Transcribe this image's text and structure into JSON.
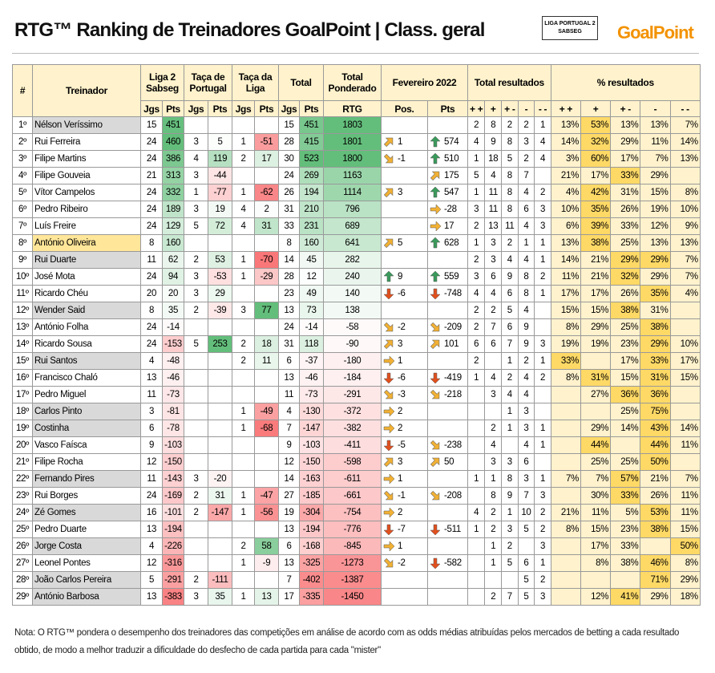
{
  "title": "RTG™ Ranking de Treinadores GoalPoint | Class. geral",
  "logos": {
    "liga": "LIGA PORTUGAL 2",
    "sponsor": "SABSEG",
    "goalpoint": "GoalPoint"
  },
  "header": {
    "rank": "#",
    "name": "Treinador",
    "liga": "Liga 2 Sabseg",
    "taca_portugal": "Taça de Portugal",
    "taca_liga": "Taça da Liga",
    "total": "Total",
    "rtg_top": "Total Ponderado",
    "rtg": "RTG",
    "month": "Fevereiro 2022",
    "pos": "Pos.",
    "pts": "Pts",
    "jgs": "Jgs",
    "results": "Total resultados",
    "pct": "% resultados",
    "result_cols": [
      "+ +",
      "+",
      "+ -",
      "-",
      "- -"
    ],
    "pct_cols": [
      "+ +",
      "+",
      "+ -",
      "-",
      "- -"
    ]
  },
  "rows": [
    {
      "rank": "1º",
      "name": "Nélson Veríssimo",
      "name_bg": "#d9d9d9",
      "liga": [
        15,
        451
      ],
      "taca_portugal": [
        null,
        null
      ],
      "taca_liga": [
        null,
        null
      ],
      "total": [
        15,
        451
      ],
      "rtg": 1803,
      "pos": {
        "value": null,
        "arrow": null
      },
      "pts": {
        "value": null,
        "arrow": null
      },
      "results": [
        2,
        8,
        2,
        2,
        1
      ],
      "pct": [
        "13%",
        "53%",
        "13%",
        "13%",
        "7%"
      ]
    },
    {
      "rank": "2º",
      "name": "Rui Ferreira",
      "name_bg": null,
      "liga": [
        24,
        460
      ],
      "taca_portugal": [
        3,
        5
      ],
      "taca_liga": [
        1,
        -51
      ],
      "total": [
        28,
        415
      ],
      "rtg": 1801,
      "pos": {
        "value": 1,
        "arrow": "ne"
      },
      "pts": {
        "value": 574,
        "arrow": "up"
      },
      "results": [
        4,
        9,
        8,
        3,
        4
      ],
      "pct": [
        "14%",
        "32%",
        "29%",
        "11%",
        "14%"
      ]
    },
    {
      "rank": "3º",
      "name": "Filipe Martins",
      "name_bg": null,
      "liga": [
        24,
        386
      ],
      "taca_portugal": [
        4,
        119
      ],
      "taca_liga": [
        2,
        17
      ],
      "total": [
        30,
        523
      ],
      "rtg": 1800,
      "pos": {
        "value": -1,
        "arrow": "se"
      },
      "pts": {
        "value": 510,
        "arrow": "up"
      },
      "results": [
        1,
        18,
        5,
        2,
        4
      ],
      "pct": [
        "3%",
        "60%",
        "17%",
        "7%",
        "13%"
      ]
    },
    {
      "rank": "4º",
      "name": "Filipe Gouveia",
      "name_bg": null,
      "liga": [
        21,
        313
      ],
      "taca_portugal": [
        3,
        -44
      ],
      "taca_liga": [
        null,
        null
      ],
      "total": [
        24,
        269
      ],
      "rtg": 1163,
      "pos": {
        "value": null,
        "arrow": null
      },
      "pts": {
        "value": 175,
        "arrow": "ne"
      },
      "results": [
        5,
        4,
        8,
        7,
        null
      ],
      "pct": [
        "21%",
        "17%",
        "33%",
        "29%",
        null
      ]
    },
    {
      "rank": "5º",
      "name": "Vítor Campelos",
      "name_bg": null,
      "liga": [
        24,
        332
      ],
      "taca_portugal": [
        1,
        -77
      ],
      "taca_liga": [
        1,
        -62
      ],
      "total": [
        26,
        194
      ],
      "rtg": 1114,
      "pos": {
        "value": 3,
        "arrow": "ne"
      },
      "pts": {
        "value": 547,
        "arrow": "up"
      },
      "results": [
        1,
        11,
        8,
        4,
        2
      ],
      "pct": [
        "4%",
        "42%",
        "31%",
        "15%",
        "8%"
      ]
    },
    {
      "rank": "6º",
      "name": "Pedro Ribeiro",
      "name_bg": null,
      "liga": [
        24,
        189
      ],
      "taca_portugal": [
        3,
        19
      ],
      "taca_liga": [
        4,
        2
      ],
      "total": [
        31,
        210
      ],
      "rtg": 796,
      "pos": {
        "value": null,
        "arrow": null
      },
      "pts": {
        "value": -28,
        "arrow": "e"
      },
      "results": [
        3,
        11,
        8,
        6,
        3
      ],
      "pct": [
        "10%",
        "35%",
        "26%",
        "19%",
        "10%"
      ]
    },
    {
      "rank": "7º",
      "name": "Luís Freire",
      "name_bg": null,
      "liga": [
        24,
        129
      ],
      "taca_portugal": [
        5,
        72
      ],
      "taca_liga": [
        4,
        31
      ],
      "total": [
        33,
        231
      ],
      "rtg": 689,
      "pos": {
        "value": null,
        "arrow": null
      },
      "pts": {
        "value": 17,
        "arrow": "e"
      },
      "results": [
        2,
        13,
        11,
        4,
        3
      ],
      "pct": [
        "6%",
        "39%",
        "33%",
        "12%",
        "9%"
      ]
    },
    {
      "rank": "8º",
      "name": "António Oliveira",
      "name_bg": "#ffe699",
      "liga": [
        8,
        160
      ],
      "taca_portugal": [
        null,
        null
      ],
      "taca_liga": [
        null,
        null
      ],
      "total": [
        8,
        160
      ],
      "rtg": 641,
      "pos": {
        "value": 5,
        "arrow": "ne"
      },
      "pts": {
        "value": 628,
        "arrow": "up"
      },
      "results": [
        1,
        3,
        2,
        1,
        1
      ],
      "pct": [
        "13%",
        "38%",
        "25%",
        "13%",
        "13%"
      ]
    },
    {
      "rank": "9º",
      "name": "Rui Duarte",
      "name_bg": "#d9d9d9",
      "liga": [
        11,
        62
      ],
      "taca_portugal": [
        2,
        53
      ],
      "taca_liga": [
        1,
        -70
      ],
      "total": [
        14,
        45
      ],
      "rtg": 282,
      "pos": {
        "value": null,
        "arrow": null
      },
      "pts": {
        "value": null,
        "arrow": null
      },
      "results": [
        2,
        3,
        4,
        4,
        1
      ],
      "pct": [
        "14%",
        "21%",
        "29%",
        "29%",
        "7%"
      ]
    },
    {
      "rank": "10º",
      "name": "José Mota",
      "name_bg": null,
      "liga": [
        24,
        94
      ],
      "taca_portugal": [
        3,
        -53
      ],
      "taca_liga": [
        1,
        -29
      ],
      "total": [
        28,
        12
      ],
      "rtg": 240,
      "pos": {
        "value": 9,
        "arrow": "up"
      },
      "pts": {
        "value": 559,
        "arrow": "up"
      },
      "results": [
        3,
        6,
        9,
        8,
        2
      ],
      "pct": [
        "11%",
        "21%",
        "32%",
        "29%",
        "7%"
      ]
    },
    {
      "rank": "11º",
      "name": "Ricardo Chéu",
      "name_bg": null,
      "liga": [
        20,
        20
      ],
      "taca_portugal": [
        3,
        29
      ],
      "taca_liga": [
        null,
        null
      ],
      "total": [
        23,
        49
      ],
      "rtg": 140,
      "pos": {
        "value": -6,
        "arrow": "down"
      },
      "pts": {
        "value": -748,
        "arrow": "down"
      },
      "results": [
        4,
        4,
        6,
        8,
        1
      ],
      "pct": [
        "17%",
        "17%",
        "26%",
        "35%",
        "4%"
      ]
    },
    {
      "rank": "12º",
      "name": "Wender Said",
      "name_bg": "#d9d9d9",
      "liga": [
        8,
        35
      ],
      "taca_portugal": [
        2,
        -39
      ],
      "taca_liga": [
        3,
        77
      ],
      "total": [
        13,
        73
      ],
      "rtg": 138,
      "pos": {
        "value": null,
        "arrow": null
      },
      "pts": {
        "value": null,
        "arrow": null
      },
      "results": [
        2,
        2,
        5,
        4,
        null
      ],
      "pct": [
        "15%",
        "15%",
        "38%",
        "31%",
        null
      ]
    },
    {
      "rank": "13º",
      "name": "António Folha",
      "name_bg": null,
      "liga": [
        24,
        -14
      ],
      "taca_portugal": [
        null,
        null
      ],
      "taca_liga": [
        null,
        null
      ],
      "total": [
        24,
        -14
      ],
      "rtg": -58,
      "pos": {
        "value": -2,
        "arrow": "se"
      },
      "pts": {
        "value": -209,
        "arrow": "se"
      },
      "results": [
        2,
        7,
        6,
        9,
        null
      ],
      "pct": [
        "8%",
        "29%",
        "25%",
        "38%",
        null
      ]
    },
    {
      "rank": "14º",
      "name": "Ricardo Sousa",
      "name_bg": null,
      "liga": [
        24,
        -153
      ],
      "taca_portugal": [
        5,
        253
      ],
      "taca_liga": [
        2,
        18
      ],
      "total": [
        31,
        118
      ],
      "rtg": -90,
      "pos": {
        "value": 3,
        "arrow": "ne"
      },
      "pts": {
        "value": 101,
        "arrow": "ne"
      },
      "results": [
        6,
        6,
        7,
        9,
        3
      ],
      "pct": [
        "19%",
        "19%",
        "23%",
        "29%",
        "10%"
      ]
    },
    {
      "rank": "15º",
      "name": "Rui Santos",
      "name_bg": "#d9d9d9",
      "liga": [
        4,
        -48
      ],
      "taca_portugal": [
        null,
        null
      ],
      "taca_liga": [
        2,
        11
      ],
      "total": [
        6,
        -37
      ],
      "rtg": -180,
      "pos": {
        "value": 1,
        "arrow": "e"
      },
      "pts": {
        "value": null,
        "arrow": null
      },
      "results": [
        2,
        null,
        1,
        2,
        1
      ],
      "pct": [
        "33%",
        null,
        "17%",
        "33%",
        "17%"
      ]
    },
    {
      "rank": "16º",
      "name": "Francisco Chaló",
      "name_bg": null,
      "liga": [
        13,
        -46
      ],
      "taca_portugal": [
        null,
        null
      ],
      "taca_liga": [
        null,
        null
      ],
      "total": [
        13,
        -46
      ],
      "rtg": -184,
      "pos": {
        "value": -6,
        "arrow": "down"
      },
      "pts": {
        "value": -419,
        "arrow": "down"
      },
      "results": [
        1,
        4,
        2,
        4,
        2
      ],
      "pct": [
        "8%",
        "31%",
        "15%",
        "31%",
        "15%"
      ]
    },
    {
      "rank": "17º",
      "name": "Pedro Miguel",
      "name_bg": null,
      "liga": [
        11,
        -73
      ],
      "taca_portugal": [
        null,
        null
      ],
      "taca_liga": [
        null,
        null
      ],
      "total": [
        11,
        -73
      ],
      "rtg": -291,
      "pos": {
        "value": -3,
        "arrow": "se"
      },
      "pts": {
        "value": -218,
        "arrow": "se"
      },
      "results": [
        null,
        3,
        4,
        4,
        null
      ],
      "pct": [
        null,
        "27%",
        "36%",
        "36%",
        null
      ]
    },
    {
      "rank": "18º",
      "name": "Carlos Pinto",
      "name_bg": "#d9d9d9",
      "liga": [
        3,
        -81
      ],
      "taca_portugal": [
        null,
        null
      ],
      "taca_liga": [
        1,
        -49
      ],
      "total": [
        4,
        -130
      ],
      "rtg": -372,
      "pos": {
        "value": 2,
        "arrow": "e"
      },
      "pts": {
        "value": null,
        "arrow": null
      },
      "results": [
        null,
        null,
        1,
        3,
        null
      ],
      "pct": [
        null,
        null,
        "25%",
        "75%",
        null
      ]
    },
    {
      "rank": "19º",
      "name": "Costinha",
      "name_bg": "#d9d9d9",
      "liga": [
        6,
        -78
      ],
      "taca_portugal": [
        null,
        null
      ],
      "taca_liga": [
        1,
        -68
      ],
      "total": [
        7,
        -147
      ],
      "rtg": -382,
      "pos": {
        "value": 2,
        "arrow": "e"
      },
      "pts": {
        "value": null,
        "arrow": null
      },
      "results": [
        null,
        2,
        1,
        3,
        1
      ],
      "pct": [
        null,
        "29%",
        "14%",
        "43%",
        "14%"
      ]
    },
    {
      "rank": "20º",
      "name": "Vasco Faísca",
      "name_bg": null,
      "liga": [
        9,
        -103
      ],
      "taca_portugal": [
        null,
        null
      ],
      "taca_liga": [
        null,
        null
      ],
      "total": [
        9,
        -103
      ],
      "rtg": -411,
      "pos": {
        "value": -5,
        "arrow": "down"
      },
      "pts": {
        "value": -238,
        "arrow": "se"
      },
      "results": [
        null,
        4,
        null,
        4,
        1
      ],
      "pct": [
        null,
        "44%",
        null,
        "44%",
        "11%"
      ]
    },
    {
      "rank": "21º",
      "name": "Filipe Rocha",
      "name_bg": null,
      "liga": [
        12,
        -150
      ],
      "taca_portugal": [
        null,
        null
      ],
      "taca_liga": [
        null,
        null
      ],
      "total": [
        12,
        -150
      ],
      "rtg": -598,
      "pos": {
        "value": 3,
        "arrow": "ne"
      },
      "pts": {
        "value": 50,
        "arrow": "ne"
      },
      "results": [
        null,
        3,
        3,
        6,
        null
      ],
      "pct": [
        null,
        "25%",
        "25%",
        "50%",
        null
      ]
    },
    {
      "rank": "22º",
      "name": "Fernando Pires",
      "name_bg": "#d9d9d9",
      "liga": [
        11,
        -143
      ],
      "taca_portugal": [
        3,
        -20
      ],
      "taca_liga": [
        null,
        null
      ],
      "total": [
        14,
        -163
      ],
      "rtg": -611,
      "pos": {
        "value": 1,
        "arrow": "e"
      },
      "pts": {
        "value": null,
        "arrow": null
      },
      "results": [
        1,
        1,
        8,
        3,
        1
      ],
      "pct": [
        "7%",
        "7%",
        "57%",
        "21%",
        "7%"
      ]
    },
    {
      "rank": "23º",
      "name": "Rui Borges",
      "name_bg": null,
      "liga": [
        24,
        -169
      ],
      "taca_portugal": [
        2,
        31
      ],
      "taca_liga": [
        1,
        -47
      ],
      "total": [
        27,
        -185
      ],
      "rtg": -661,
      "pos": {
        "value": -1,
        "arrow": "se"
      },
      "pts": {
        "value": -208,
        "arrow": "se"
      },
      "results": [
        null,
        8,
        9,
        7,
        3
      ],
      "pct": [
        null,
        "30%",
        "33%",
        "26%",
        "11%"
      ]
    },
    {
      "rank": "24º",
      "name": "Zé Gomes",
      "name_bg": "#d9d9d9",
      "liga": [
        16,
        -101
      ],
      "taca_portugal": [
        2,
        -147
      ],
      "taca_liga": [
        1,
        -56
      ],
      "total": [
        19,
        -304
      ],
      "rtg": -754,
      "pos": {
        "value": 2,
        "arrow": "e"
      },
      "pts": {
        "value": null,
        "arrow": null
      },
      "results": [
        4,
        2,
        1,
        10,
        2
      ],
      "pct": [
        "21%",
        "11%",
        "5%",
        "53%",
        "11%"
      ]
    },
    {
      "rank": "25º",
      "name": "Pedro Duarte",
      "name_bg": null,
      "liga": [
        13,
        -194
      ],
      "taca_portugal": [
        null,
        null
      ],
      "taca_liga": [
        null,
        null
      ],
      "total": [
        13,
        -194
      ],
      "rtg": -776,
      "pos": {
        "value": -7,
        "arrow": "down"
      },
      "pts": {
        "value": -511,
        "arrow": "down"
      },
      "results": [
        1,
        2,
        3,
        5,
        2
      ],
      "pct": [
        "8%",
        "15%",
        "23%",
        "38%",
        "15%"
      ]
    },
    {
      "rank": "26º",
      "name": "Jorge Costa",
      "name_bg": "#d9d9d9",
      "liga": [
        4,
        -226
      ],
      "taca_portugal": [
        null,
        null
      ],
      "taca_liga": [
        2,
        58
      ],
      "total": [
        6,
        -168
      ],
      "rtg": -845,
      "pos": {
        "value": 1,
        "arrow": "e"
      },
      "pts": {
        "value": null,
        "arrow": null
      },
      "results": [
        null,
        1,
        2,
        null,
        3
      ],
      "pct": [
        null,
        "17%",
        "33%",
        null,
        "50%"
      ]
    },
    {
      "rank": "27º",
      "name": "Leonel Pontes",
      "name_bg": null,
      "liga": [
        12,
        -316
      ],
      "taca_portugal": [
        null,
        null
      ],
      "taca_liga": [
        1,
        -9
      ],
      "total": [
        13,
        -325
      ],
      "rtg": -1273,
      "pos": {
        "value": -2,
        "arrow": "se"
      },
      "pts": {
        "value": -582,
        "arrow": "down"
      },
      "results": [
        null,
        1,
        5,
        6,
        1
      ],
      "pct": [
        null,
        "8%",
        "38%",
        "46%",
        "8%"
      ]
    },
    {
      "rank": "28º",
      "name": "João Carlos Pereira",
      "name_bg": "#d9d9d9",
      "liga": [
        5,
        -291
      ],
      "taca_portugal": [
        2,
        -111
      ],
      "taca_liga": [
        null,
        null
      ],
      "total": [
        7,
        -402
      ],
      "rtg": -1387,
      "pos": {
        "value": null,
        "arrow": null
      },
      "pts": {
        "value": null,
        "arrow": null
      },
      "results": [
        null,
        null,
        null,
        5,
        2
      ],
      "pct": [
        null,
        null,
        null,
        "71%",
        "29%"
      ]
    },
    {
      "rank": "29º",
      "name": "António Barbosa",
      "name_bg": "#d9d9d9",
      "liga": [
        13,
        -383
      ],
      "taca_portugal": [
        3,
        35
      ],
      "taca_liga": [
        1,
        13
      ],
      "total": [
        17,
        -335
      ],
      "rtg": -1450,
      "pos": {
        "value": null,
        "arrow": null
      },
      "pts": {
        "value": null,
        "arrow": null
      },
      "results": [
        null,
        2,
        7,
        5,
        3
      ],
      "pct": [
        null,
        "12%",
        "41%",
        "29%",
        "18%"
      ]
    }
  ],
  "note": [
    "Nota: O RTG™ pondera o desempenho dos treinadores das competições em análise de acordo com as odds médias atribuídas pelos mercados de betting a cada resultado",
    "obtido, de modo a melhor traduzir a dificuldade do desfecho de cada partida para cada \"mister\""
  ]
}
